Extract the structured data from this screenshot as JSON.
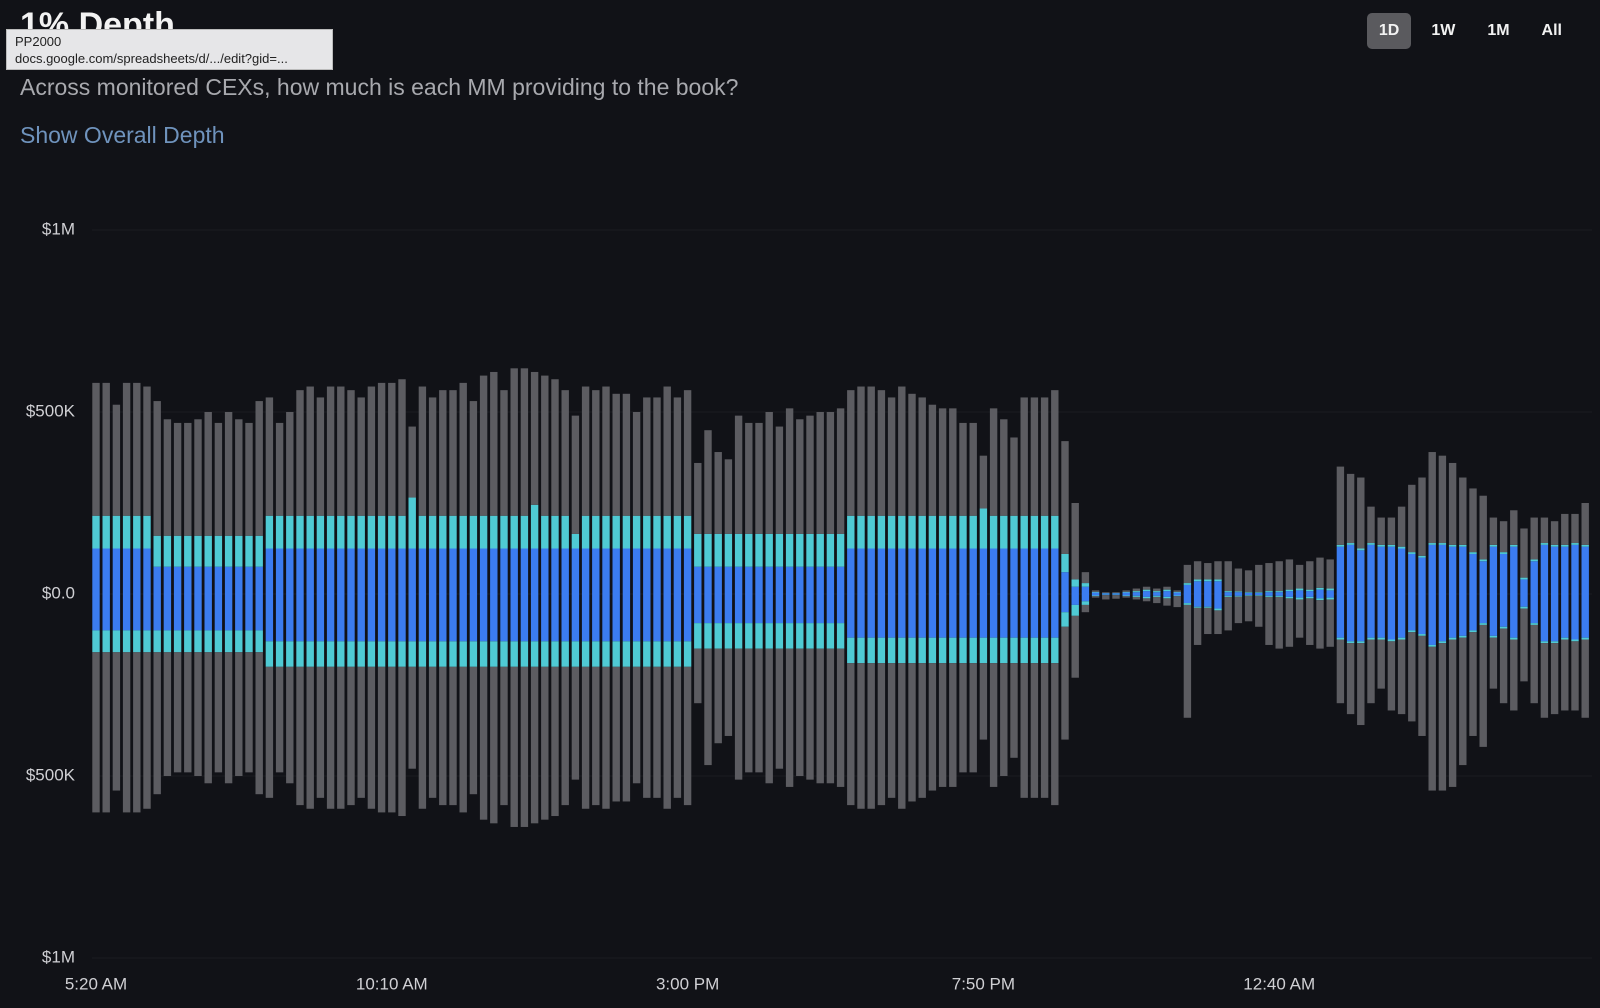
{
  "header": {
    "title": "1% Depth",
    "tooltip": {
      "name": "PP2000",
      "url": "docs.google.com/spreadsheets/d/.../edit?gid=..."
    },
    "subtitle": "Across monitored CEXs, how much is each MM providing to the book?",
    "link": "Show Overall Depth",
    "ranges": [
      "1D",
      "1W",
      "1M",
      "All"
    ],
    "active_range": "1D"
  },
  "chart_data": {
    "type": "bar",
    "stacked": true,
    "grid": true,
    "ylim": [
      -1000000,
      1000000
    ],
    "yticks": [
      {
        "value": 1000000,
        "label": "$1M"
      },
      {
        "value": 500000,
        "label": "$500K"
      },
      {
        "value": 0,
        "label": "$0.0"
      },
      {
        "value": -500000,
        "label": "$500K"
      },
      {
        "value": -1000000,
        "label": "$1M"
      }
    ],
    "categories": [
      "5:20 AM",
      null,
      null,
      null,
      null,
      null,
      null,
      null,
      null,
      null,
      null,
      null,
      null,
      null,
      null,
      null,
      null,
      null,
      null,
      null,
      null,
      null,
      null,
      null,
      null,
      null,
      null,
      null,
      null,
      "10:10 AM",
      null,
      null,
      null,
      null,
      null,
      null,
      null,
      null,
      null,
      null,
      null,
      null,
      null,
      null,
      null,
      null,
      null,
      null,
      null,
      null,
      null,
      null,
      null,
      null,
      null,
      null,
      null,
      null,
      "3:00 PM",
      null,
      null,
      null,
      null,
      null,
      null,
      null,
      null,
      null,
      null,
      null,
      null,
      null,
      null,
      null,
      null,
      null,
      null,
      null,
      null,
      null,
      null,
      null,
      null,
      null,
      null,
      null,
      null,
      "7:50 PM",
      null,
      null,
      null,
      null,
      null,
      null,
      null,
      null,
      null,
      null,
      null,
      null,
      null,
      null,
      null,
      null,
      null,
      null,
      null,
      null,
      null,
      null,
      null,
      null,
      null,
      null,
      null,
      null,
      "12:40 AM",
      null,
      null,
      null,
      null,
      null,
      null,
      null,
      null,
      null,
      null,
      null,
      null,
      null,
      null,
      null,
      null,
      null,
      null,
      null,
      null,
      null,
      null,
      null,
      null,
      null,
      null,
      null,
      null,
      null,
      null
    ],
    "series": [
      {
        "color": "#3b7cf0",
        "values": [
          125000,
          125000,
          125000,
          125000,
          125000,
          125000,
          75000,
          75000,
          75000,
          75000,
          75000,
          75000,
          75000,
          75000,
          75000,
          75000,
          75000,
          125000,
          125000,
          125000,
          125000,
          125000,
          125000,
          125000,
          125000,
          125000,
          125000,
          125000,
          125000,
          125000,
          125000,
          125000,
          125000,
          125000,
          125000,
          125000,
          125000,
          125000,
          125000,
          125000,
          125000,
          125000,
          125000,
          125000,
          125000,
          125000,
          125000,
          125000,
          125000,
          125000,
          125000,
          125000,
          125000,
          125000,
          125000,
          125000,
          125000,
          125000,
          125000,
          75000,
          75000,
          75000,
          75000,
          75000,
          75000,
          75000,
          75000,
          75000,
          75000,
          75000,
          75000,
          75000,
          75000,
          75000,
          125000,
          125000,
          125000,
          125000,
          125000,
          125000,
          125000,
          125000,
          125000,
          125000,
          125000,
          125000,
          125000,
          125000,
          125000,
          125000,
          125000,
          125000,
          125000,
          125000,
          125000,
          60000,
          20000,
          20000,
          4000,
          2000,
          2000,
          4000,
          5000,
          8000,
          5000,
          8000,
          4000,
          25000,
          35000,
          35000,
          35000,
          5000,
          5000,
          3000,
          3000,
          5000,
          5000,
          8000,
          10000,
          8000,
          12000,
          10000,
          130000,
          135000,
          120000,
          135000,
          130000,
          130000,
          125000,
          110000,
          100000,
          135000,
          135000,
          130000,
          130000,
          110000,
          90000,
          130000,
          110000,
          130000,
          40000,
          90000,
          135000,
          130000,
          130000,
          135000,
          130000
        ]
      },
      {
        "color": "#4fcad4",
        "values": [
          90000,
          90000,
          90000,
          90000,
          90000,
          90000,
          85000,
          85000,
          85000,
          85000,
          85000,
          85000,
          85000,
          85000,
          85000,
          85000,
          85000,
          90000,
          90000,
          90000,
          90000,
          90000,
          90000,
          90000,
          90000,
          90000,
          90000,
          90000,
          90000,
          90000,
          90000,
          140000,
          90000,
          90000,
          90000,
          90000,
          90000,
          90000,
          90000,
          90000,
          90000,
          90000,
          90000,
          120000,
          90000,
          90000,
          90000,
          40000,
          90000,
          90000,
          90000,
          90000,
          90000,
          90000,
          90000,
          90000,
          90000,
          90000,
          90000,
          90000,
          90000,
          90000,
          90000,
          90000,
          90000,
          90000,
          90000,
          90000,
          90000,
          90000,
          90000,
          90000,
          90000,
          90000,
          90000,
          90000,
          90000,
          90000,
          90000,
          90000,
          90000,
          90000,
          90000,
          90000,
          90000,
          90000,
          90000,
          110000,
          90000,
          90000,
          90000,
          90000,
          90000,
          90000,
          90000,
          50000,
          20000,
          10000,
          2000,
          1000,
          1000,
          2000,
          3000,
          4000,
          3000,
          4000,
          2000,
          5000,
          5000,
          5000,
          5000,
          3000,
          2000,
          2000,
          2000,
          3000,
          3000,
          4000,
          5000,
          4000,
          5000,
          5000,
          5000,
          5000,
          5000,
          5000,
          5000,
          5000,
          5000,
          5000,
          5000,
          5000,
          5000,
          5000,
          5000,
          5000,
          5000,
          5000,
          5000,
          5000,
          5000,
          5000,
          5000,
          5000,
          5000,
          5000,
          5000
        ]
      },
      {
        "color": "#5c5c61",
        "values": [
          365000,
          365000,
          305000,
          365000,
          365000,
          355000,
          370000,
          320000,
          310000,
          310000,
          320000,
          340000,
          310000,
          340000,
          320000,
          310000,
          370000,
          325000,
          255000,
          285000,
          345000,
          355000,
          325000,
          355000,
          355000,
          345000,
          325000,
          355000,
          365000,
          365000,
          375000,
          195000,
          355000,
          325000,
          345000,
          345000,
          365000,
          315000,
          385000,
          395000,
          345000,
          405000,
          405000,
          365000,
          385000,
          375000,
          345000,
          325000,
          355000,
          345000,
          355000,
          335000,
          335000,
          285000,
          325000,
          325000,
          355000,
          325000,
          345000,
          195000,
          285000,
          225000,
          205000,
          325000,
          305000,
          305000,
          335000,
          295000,
          345000,
          315000,
          325000,
          335000,
          335000,
          345000,
          345000,
          355000,
          355000,
          345000,
          325000,
          355000,
          335000,
          325000,
          305000,
          295000,
          295000,
          255000,
          255000,
          145000,
          295000,
          265000,
          215000,
          325000,
          325000,
          325000,
          345000,
          310000,
          210000,
          30000,
          4000,
          2000,
          2000,
          4000,
          7000,
          8000,
          7000,
          8000,
          4000,
          50000,
          50000,
          45000,
          50000,
          82000,
          63000,
          60000,
          75000,
          77000,
          82000,
          83000,
          65000,
          78000,
          83000,
          80000,
          215000,
          190000,
          195000,
          100000,
          75000,
          75000,
          110000,
          185000,
          215000,
          250000,
          240000,
          225000,
          185000,
          175000,
          175000,
          75000,
          85000,
          95000,
          135000,
          115000,
          70000,
          65000,
          85000,
          80000,
          115000
        ]
      },
      {
        "color": "#3b7cf0",
        "values": [
          -100000,
          -100000,
          -100000,
          -100000,
          -100000,
          -100000,
          -100000,
          -100000,
          -100000,
          -100000,
          -100000,
          -100000,
          -100000,
          -100000,
          -100000,
          -100000,
          -100000,
          -130000,
          -130000,
          -130000,
          -130000,
          -130000,
          -130000,
          -130000,
          -130000,
          -130000,
          -130000,
          -130000,
          -130000,
          -130000,
          -130000,
          -130000,
          -130000,
          -130000,
          -130000,
          -130000,
          -130000,
          -130000,
          -130000,
          -130000,
          -130000,
          -130000,
          -130000,
          -130000,
          -130000,
          -130000,
          -130000,
          -130000,
          -130000,
          -130000,
          -130000,
          -130000,
          -130000,
          -130000,
          -130000,
          -130000,
          -130000,
          -130000,
          -130000,
          -80000,
          -80000,
          -80000,
          -80000,
          -80000,
          -80000,
          -80000,
          -80000,
          -80000,
          -80000,
          -80000,
          -80000,
          -80000,
          -80000,
          -80000,
          -120000,
          -120000,
          -120000,
          -120000,
          -120000,
          -120000,
          -120000,
          -120000,
          -120000,
          -120000,
          -120000,
          -120000,
          -120000,
          -120000,
          -120000,
          -120000,
          -120000,
          -120000,
          -120000,
          -120000,
          -120000,
          -50000,
          -30000,
          -20000,
          -4000,
          -2000,
          -2000,
          -4000,
          -5000,
          -8000,
          -5000,
          -8000,
          -4000,
          -25000,
          -35000,
          -35000,
          -40000,
          -5000,
          -5000,
          -3000,
          -3000,
          -5000,
          -5000,
          -8000,
          -10000,
          -8000,
          -12000,
          -10000,
          -120000,
          -130000,
          -130000,
          -120000,
          -120000,
          -125000,
          -120000,
          -100000,
          -110000,
          -140000,
          -130000,
          -120000,
          -115000,
          -100000,
          -80000,
          -115000,
          -90000,
          -120000,
          -35000,
          -80000,
          -130000,
          -130000,
          -120000,
          -125000,
          -120000
        ]
      },
      {
        "color": "#4fcad4",
        "values": [
          -60000,
          -60000,
          -60000,
          -60000,
          -60000,
          -60000,
          -60000,
          -60000,
          -60000,
          -60000,
          -60000,
          -60000,
          -60000,
          -60000,
          -60000,
          -60000,
          -60000,
          -70000,
          -70000,
          -70000,
          -70000,
          -70000,
          -70000,
          -70000,
          -70000,
          -70000,
          -70000,
          -70000,
          -70000,
          -70000,
          -70000,
          -70000,
          -70000,
          -70000,
          -70000,
          -70000,
          -70000,
          -70000,
          -70000,
          -70000,
          -70000,
          -70000,
          -70000,
          -70000,
          -70000,
          -70000,
          -70000,
          -70000,
          -70000,
          -70000,
          -70000,
          -70000,
          -70000,
          -70000,
          -70000,
          -70000,
          -70000,
          -70000,
          -70000,
          -70000,
          -70000,
          -70000,
          -70000,
          -70000,
          -70000,
          -70000,
          -70000,
          -70000,
          -70000,
          -70000,
          -70000,
          -70000,
          -70000,
          -70000,
          -70000,
          -70000,
          -70000,
          -70000,
          -70000,
          -70000,
          -70000,
          -70000,
          -70000,
          -70000,
          -70000,
          -70000,
          -70000,
          -70000,
          -70000,
          -70000,
          -70000,
          -70000,
          -70000,
          -70000,
          -70000,
          -40000,
          -30000,
          -10000,
          -2000,
          -1000,
          -1000,
          -2000,
          -3000,
          -4000,
          -3000,
          -4000,
          -2000,
          -5000,
          -3000,
          -3000,
          -5000,
          -3000,
          -2000,
          -2000,
          -2000,
          -3000,
          -3000,
          -4000,
          -5000,
          -4000,
          -5000,
          -5000,
          -5000,
          -5000,
          -5000,
          -5000,
          -5000,
          -5000,
          -5000,
          -5000,
          -5000,
          -5000,
          -5000,
          -5000,
          -5000,
          -5000,
          -5000,
          -5000,
          -5000,
          -5000,
          -5000,
          -5000,
          -5000,
          -5000,
          -5000,
          -5000,
          -5000
        ]
      },
      {
        "color": "#5c5c61",
        "values": [
          -440000,
          -440000,
          -380000,
          -440000,
          -440000,
          -430000,
          -390000,
          -340000,
          -330000,
          -330000,
          -340000,
          -360000,
          -330000,
          -360000,
          -340000,
          -330000,
          -390000,
          -360000,
          -290000,
          -320000,
          -380000,
          -390000,
          -360000,
          -390000,
          -390000,
          -380000,
          -360000,
          -390000,
          -400000,
          -400000,
          -410000,
          -280000,
          -390000,
          -360000,
          -380000,
          -380000,
          -400000,
          -350000,
          -420000,
          -430000,
          -380000,
          -440000,
          -440000,
          -430000,
          -420000,
          -410000,
          -380000,
          -310000,
          -390000,
          -380000,
          -390000,
          -370000,
          -370000,
          -320000,
          -360000,
          -360000,
          -390000,
          -360000,
          -380000,
          -150000,
          -320000,
          -260000,
          -240000,
          -360000,
          -340000,
          -340000,
          -370000,
          -330000,
          -380000,
          -350000,
          -360000,
          -370000,
          -370000,
          -380000,
          -390000,
          -400000,
          -400000,
          -390000,
          -370000,
          -400000,
          -380000,
          -370000,
          -350000,
          -340000,
          -340000,
          -300000,
          -300000,
          -210000,
          -340000,
          -310000,
          -260000,
          -370000,
          -370000,
          -370000,
          -390000,
          -310000,
          -170000,
          -20000,
          -4000,
          -12000,
          -10000,
          -4000,
          -7000,
          -8000,
          -17000,
          -20000,
          -30000,
          -310000,
          -102000,
          -72000,
          -65000,
          -92000,
          -73000,
          -70000,
          -85000,
          -132000,
          -142000,
          -133000,
          -105000,
          -128000,
          -133000,
          -130000,
          -175000,
          -195000,
          -225000,
          -175000,
          -135000,
          -190000,
          -205000,
          -245000,
          -275000,
          -395000,
          -405000,
          -405000,
          -350000,
          -285000,
          -335000,
          -140000,
          -205000,
          -195000,
          -200000,
          -215000,
          -205000,
          -195000,
          -195000,
          -190000,
          -215000
        ]
      }
    ]
  }
}
